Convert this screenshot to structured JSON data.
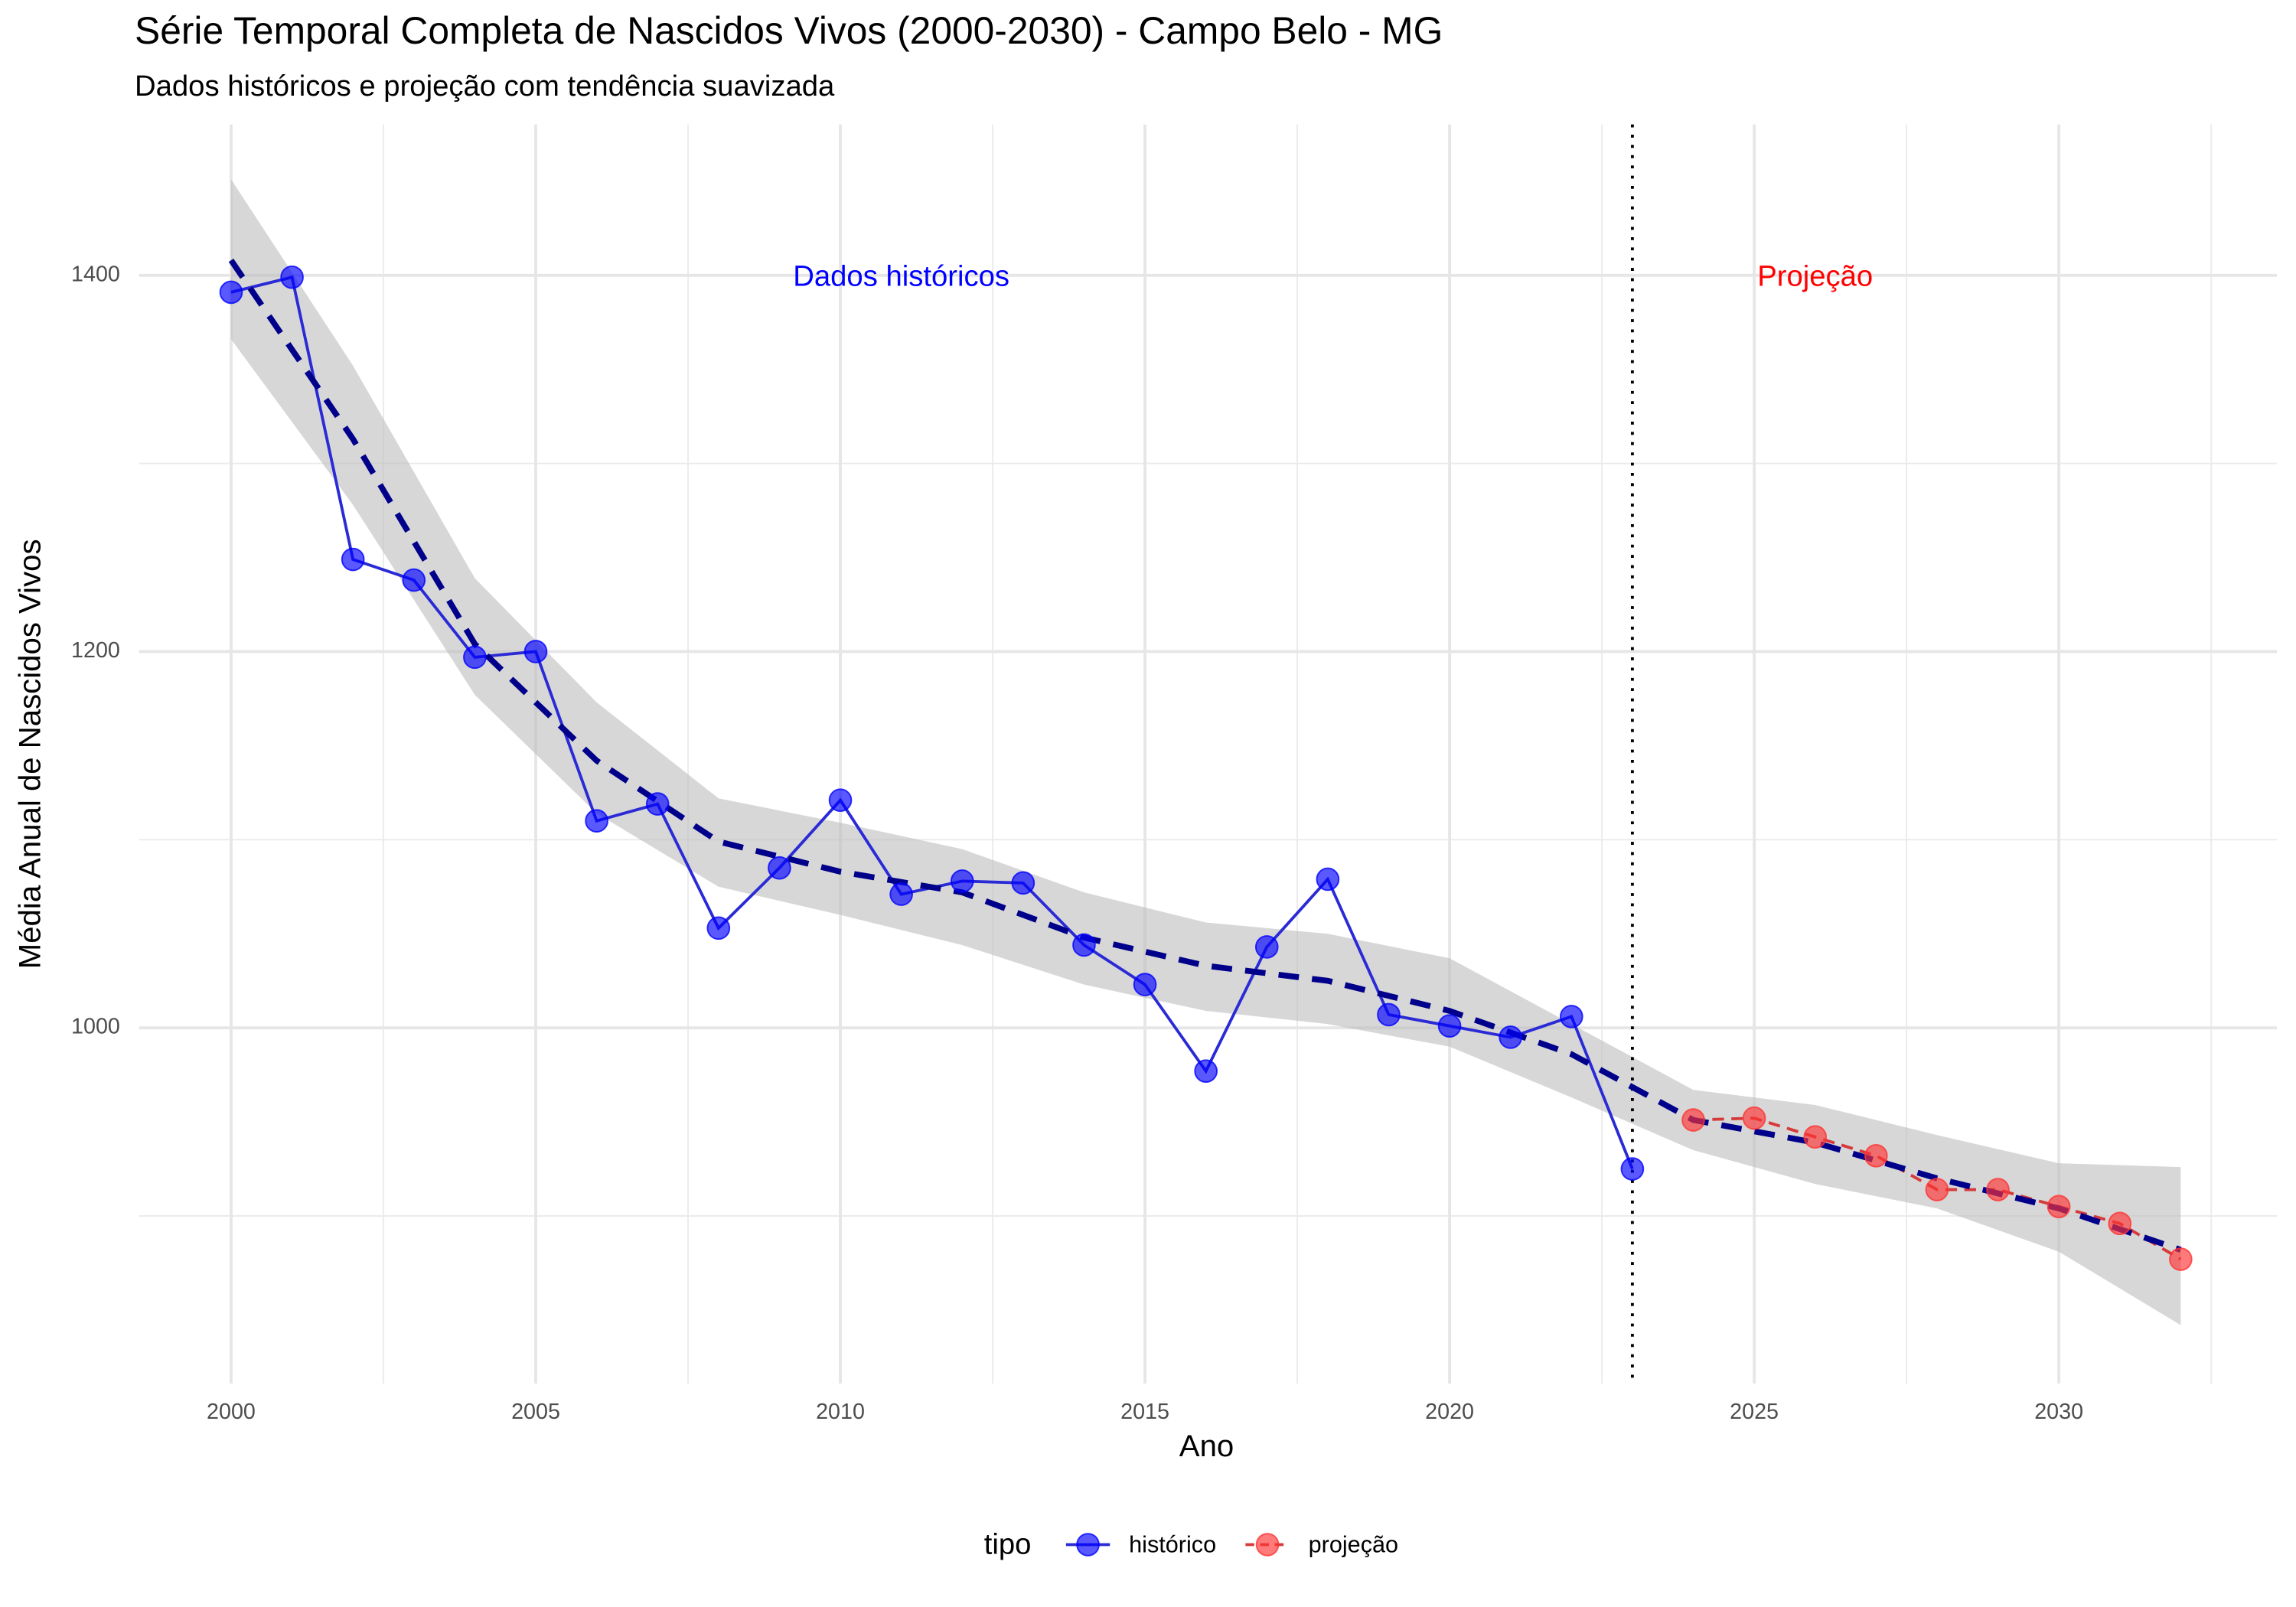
{
  "chart_data": {
    "type": "line",
    "title": "Série Temporal Completa de Nascidos Vivos (2000-2030) -  Campo Belo - MG",
    "subtitle": "Dados históricos e projeção com tendência suavizada",
    "x_label": "Ano",
    "y_label": "Média Anual de Nascidos Vivos",
    "legend_title": "tipo",
    "legend_position": "bottom",
    "grid": true,
    "xlim": [
      1998.49,
      2033.58
    ],
    "ylim": [
      810.9,
      1480.2
    ],
    "xticks": [
      2000,
      2005,
      2010,
      2015,
      2020,
      2025,
      2030
    ],
    "yticks": [
      1000,
      1200,
      1400
    ],
    "series": [
      {
        "name": "histórico",
        "color": "#0000ff",
        "line_color": "#2a2ad6",
        "dashed": false,
        "x": [
          2000,
          2001,
          2002,
          2003,
          2004,
          2005,
          2006,
          2007,
          2008,
          2009,
          2010,
          2011,
          2012,
          2013,
          2014,
          2015,
          2016,
          2017,
          2018,
          2019,
          2020,
          2021,
          2022,
          2023
        ],
        "values": [
          1391,
          1399,
          1249,
          1238,
          1197,
          1200,
          1110,
          1119,
          1053,
          1085,
          1121,
          1071,
          1078,
          1077,
          1044,
          1023,
          977,
          1043,
          1079,
          1007,
          1001,
          995,
          1006,
          925
        ]
      },
      {
        "name": "projeção",
        "color": "#ff3333",
        "line_color": "#d63a3a",
        "dashed": true,
        "x": [
          2024,
          2025,
          2026,
          2027,
          2028,
          2029,
          2030,
          2031,
          2032
        ],
        "values": [
          951,
          952,
          942,
          932,
          914,
          914,
          905,
          896,
          877
        ]
      }
    ],
    "trend": {
      "color": "#00008b",
      "band_color": "#bdbdbd",
      "x": [
        2000,
        2002,
        2004,
        2006,
        2008,
        2010,
        2012,
        2014,
        2016,
        2018,
        2020,
        2022,
        2024,
        2026,
        2028,
        2030,
        2032
      ],
      "values": [
        1408,
        1313,
        1204,
        1142,
        1099,
        1083,
        1072,
        1048,
        1033,
        1025,
        1009,
        986,
        951,
        939,
        920,
        904,
        882
      ],
      "lower": [
        1366,
        1278,
        1177,
        1114,
        1075,
        1060,
        1044,
        1023,
        1009,
        1002,
        990,
        963,
        935,
        917,
        904,
        881,
        842
      ],
      "upper": [
        1451,
        1352,
        1239,
        1173,
        1122,
        1109,
        1095,
        1072,
        1056,
        1050,
        1037,
        1002,
        967,
        959,
        943,
        928,
        926
      ]
    },
    "vline": 2023,
    "annotations": [
      {
        "text": "Dados históricos",
        "x": 2011,
        "y": 1400,
        "color": "#0000ff"
      },
      {
        "text": "Projeção",
        "x": 2026,
        "y": 1400,
        "color": "#ff0000"
      }
    ]
  }
}
